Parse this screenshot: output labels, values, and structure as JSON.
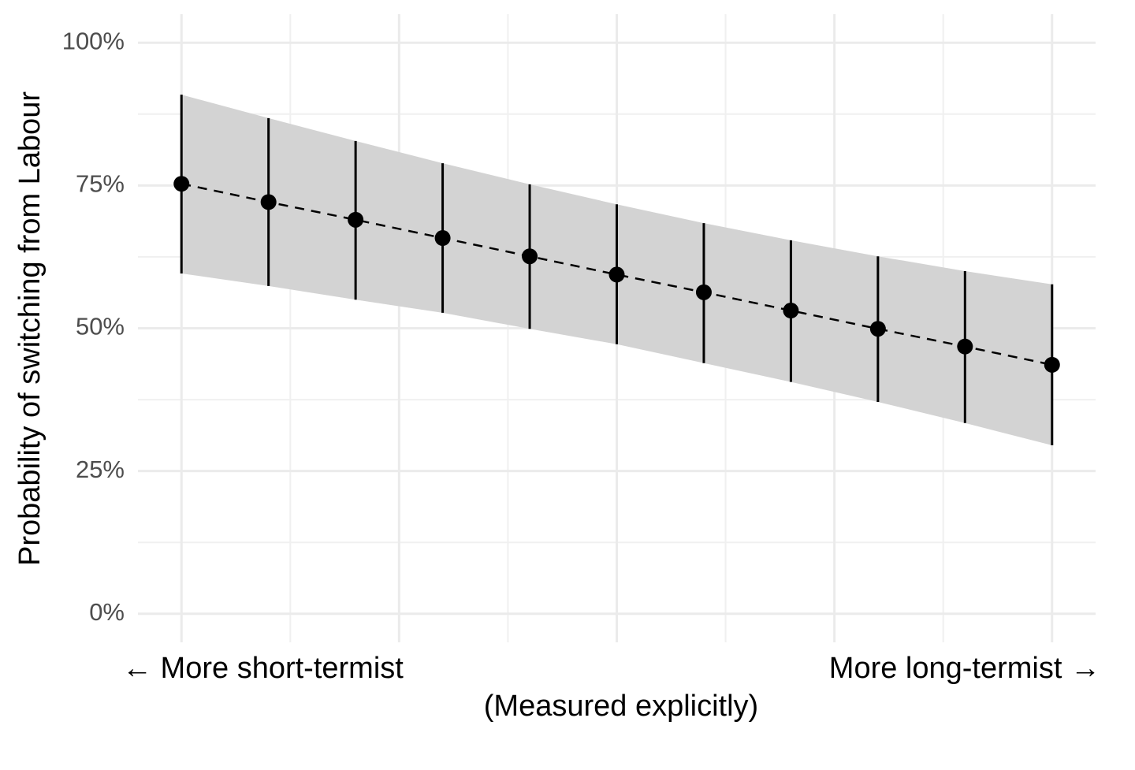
{
  "chart_data": {
    "type": "pointrange",
    "y_label": "Probability of switching from Labour",
    "x_label": "(Measured explicitly)",
    "x_left_label": "← More short-termist",
    "x_right_label": "More long-termist →",
    "x": [
      0,
      0.1,
      0.2,
      0.3,
      0.4,
      0.5,
      0.6,
      0.7,
      0.8,
      0.9,
      1
    ],
    "values": [
      75.3,
      72.1,
      69.0,
      65.8,
      62.6,
      59.4,
      56.3,
      53.1,
      49.9,
      46.8,
      43.6
    ],
    "lower": [
      59.6,
      57.4,
      55.0,
      52.7,
      49.9,
      47.2,
      43.9,
      40.6,
      37.1,
      33.4,
      29.5
    ],
    "upper": [
      90.9,
      86.8,
      82.8,
      78.9,
      75.2,
      71.7,
      68.4,
      65.4,
      62.6,
      60.0,
      57.7
    ],
    "color": "#000000",
    "band_color": "#d3d3d3",
    "xlim": [
      -0.05,
      1.05
    ],
    "ylim": [
      -5,
      105
    ],
    "xticks": [
      0,
      0.25,
      0.5,
      0.75,
      1
    ],
    "xminorticks": [
      0.125,
      0.375,
      0.625,
      0.875
    ],
    "yticks": [
      {
        "value": 0,
        "label": "0%"
      },
      {
        "value": 25,
        "label": "25%"
      },
      {
        "value": 50,
        "label": "50%"
      },
      {
        "value": 75,
        "label": "75%"
      },
      {
        "value": 100,
        "label": "100%"
      }
    ],
    "yminorticks": [
      12.5,
      37.5,
      62.5,
      87.5
    ],
    "grid": true
  }
}
